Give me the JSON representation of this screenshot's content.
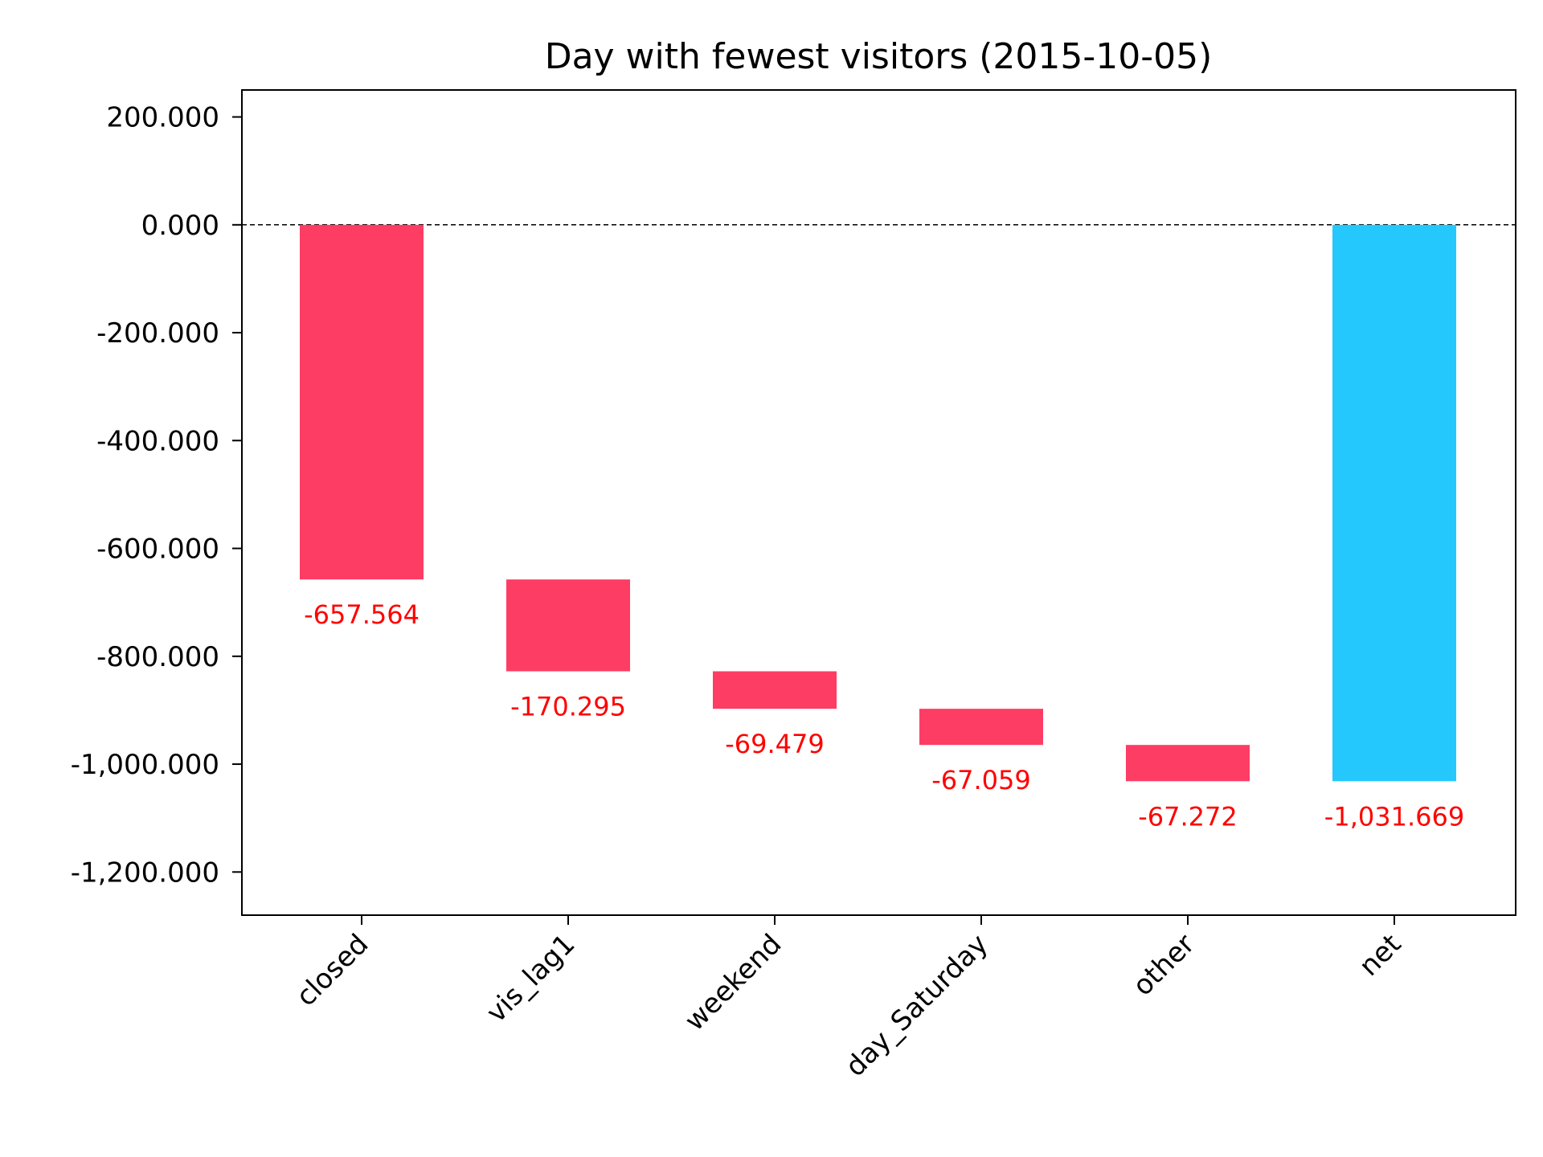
{
  "colors": {
    "negative": "#fd3d64",
    "net": "#25c8fd",
    "label": "#ff0000",
    "axis": "#000000"
  },
  "chart_data": {
    "type": "bar",
    "subtype": "waterfall",
    "title": "Day with fewest visitors (2015-10-05)",
    "xlabel": "",
    "ylabel": "",
    "categories": [
      "closed",
      "vis_lag1",
      "weekend",
      "day_Saturday",
      "other",
      "net"
    ],
    "values": [
      -657.564,
      -170.295,
      -69.479,
      -67.059,
      -67.272,
      -1031.669
    ],
    "labels": [
      "-657.564",
      "-170.295",
      "-69.479",
      "-67.059",
      "-67.272",
      "-1,031.669"
    ],
    "is_total": [
      false,
      false,
      false,
      false,
      false,
      true
    ],
    "ylim": [
      -1280,
      250
    ],
    "yticks": [
      200,
      0,
      -200,
      -400,
      -600,
      -800,
      -1000,
      -1200
    ],
    "ytick_labels": [
      "200.000",
      "0.000",
      "-200.000",
      "-400.000",
      "-600.000",
      "-800.000",
      "-1,000.000",
      "-1,200.000"
    ],
    "zero_line": "dashed",
    "grid": false,
    "legend": "none"
  }
}
